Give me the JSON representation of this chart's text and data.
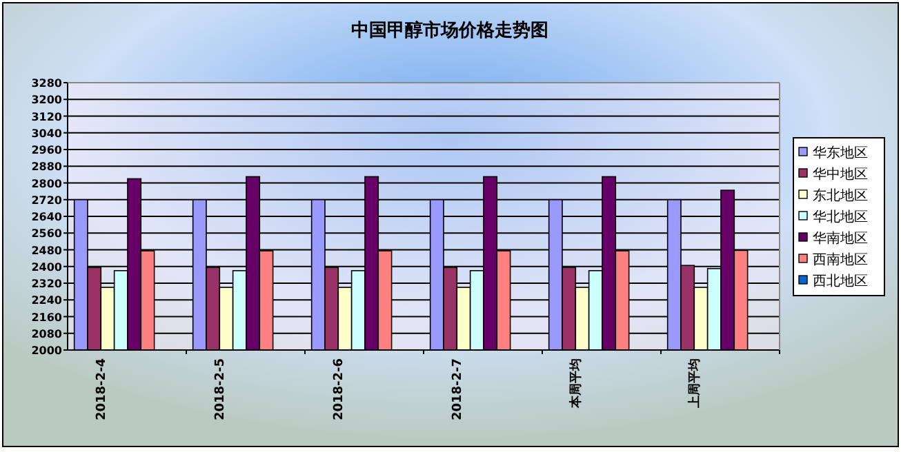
{
  "chart_data": {
    "type": "bar",
    "title": "中国甲醇市场价格走势图",
    "categories": [
      "2018-2-4",
      "2018-2-5",
      "2018-2-6",
      "2018-2-7",
      "本周平均",
      "上周平均"
    ],
    "series": [
      {
        "name": "华东地区",
        "color": "#9999ff",
        "values": [
          2720,
          2720,
          2720,
          2720,
          2720,
          2720
        ]
      },
      {
        "name": "华中地区",
        "color": "#993366",
        "values": [
          2395,
          2395,
          2395,
          2395,
          2395,
          2405
        ]
      },
      {
        "name": "东北地区",
        "color": "#ffffcc",
        "values": [
          2300,
          2300,
          2300,
          2300,
          2300,
          2300
        ]
      },
      {
        "name": "华北地区",
        "color": "#ccffff",
        "values": [
          2380,
          2380,
          2380,
          2380,
          2380,
          2390
        ]
      },
      {
        "name": "华南地区",
        "color": "#660066",
        "values": [
          2820,
          2830,
          2830,
          2830,
          2830,
          2765
        ]
      },
      {
        "name": "西南地区",
        "color": "#ff8080",
        "values": [
          2475,
          2475,
          2475,
          2475,
          2475,
          2477
        ]
      },
      {
        "name": "西北地区",
        "color": "#0066cc",
        "values": [
          null,
          null,
          null,
          null,
          null,
          null
        ]
      }
    ],
    "ylim": [
      2000,
      3280
    ],
    "yticks": [
      2000,
      2080,
      2160,
      2240,
      2320,
      2400,
      2480,
      2560,
      2640,
      2720,
      2800,
      2880,
      2960,
      3040,
      3120,
      3200,
      3280
    ],
    "grid": "y",
    "legend": "right"
  }
}
